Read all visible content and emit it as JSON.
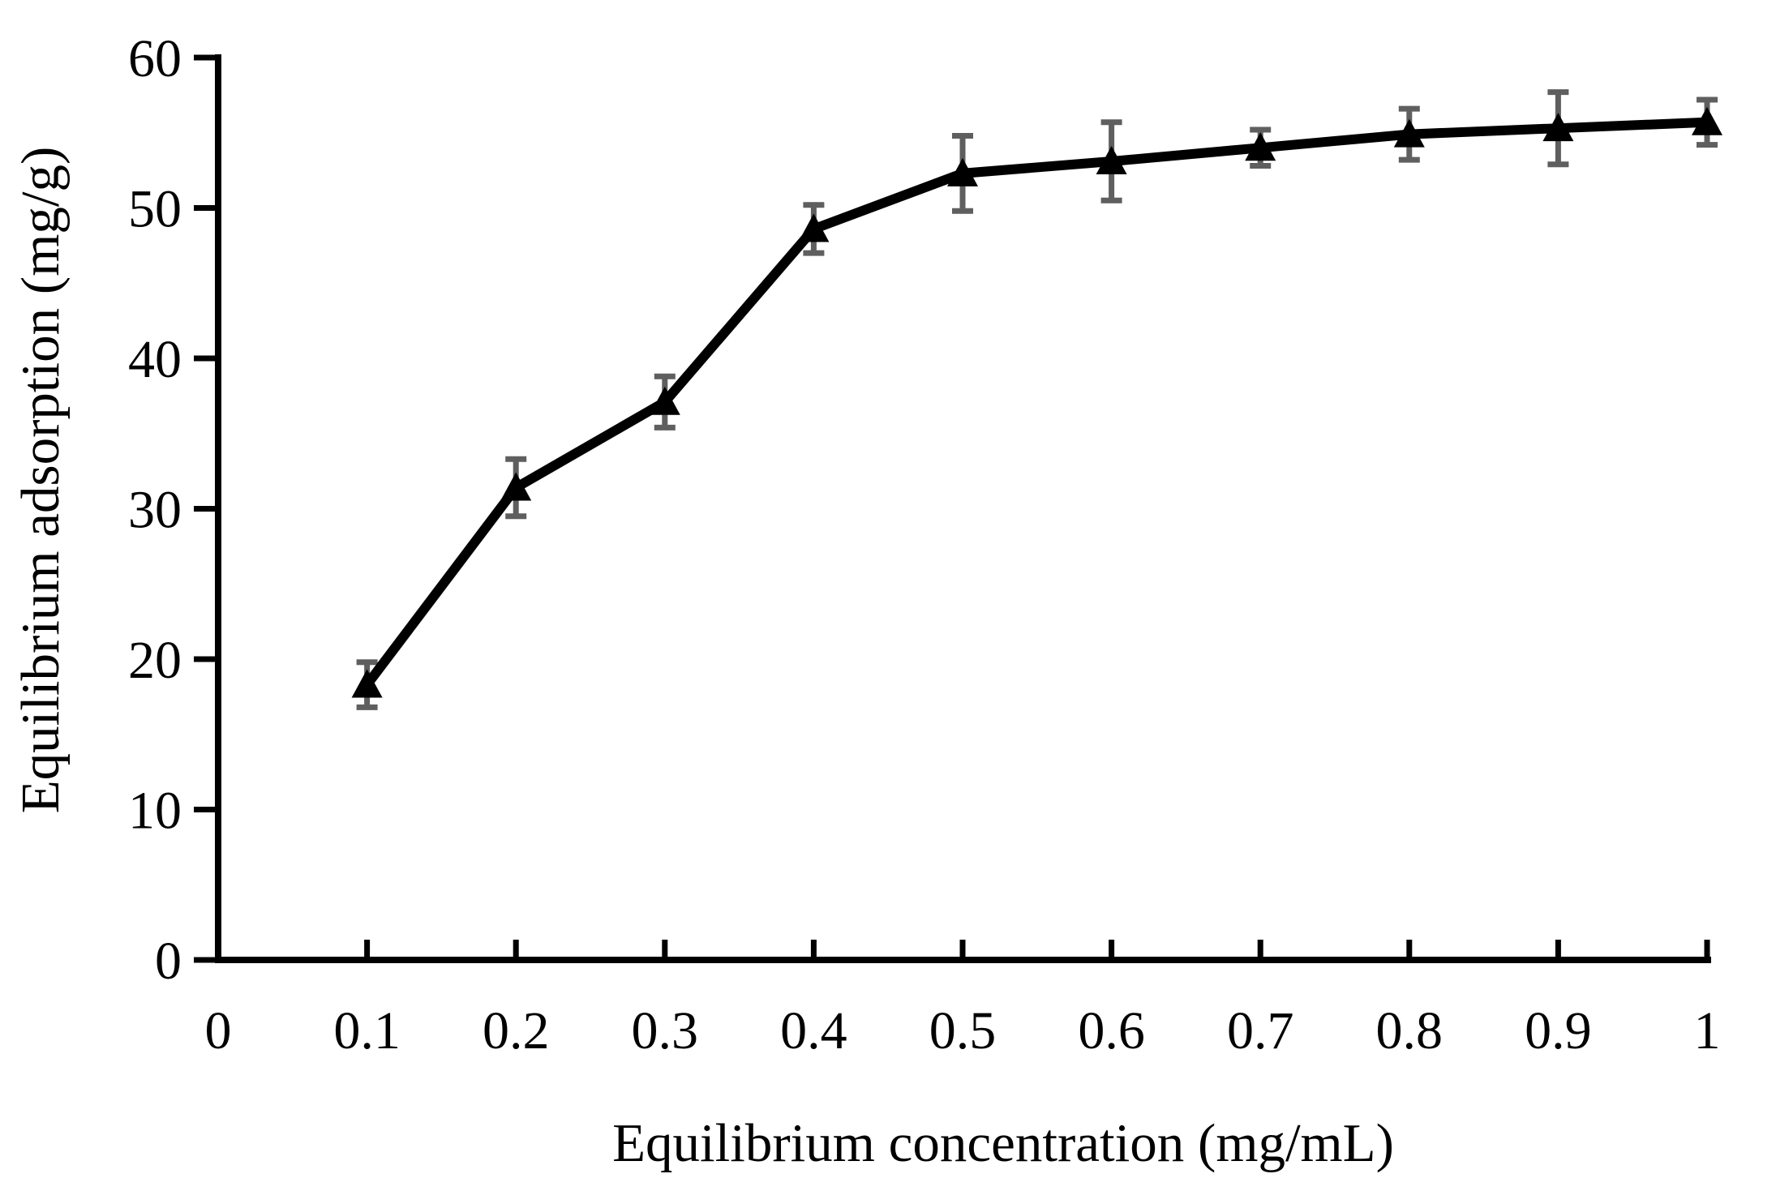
{
  "figure": {
    "background_color": "#ffffff"
  },
  "chart_data": {
    "type": "line",
    "title": "",
    "xlabel": "Equilibrium concentration (mg/mL)",
    "ylabel": "Equilibrium adsorption (mg/g)",
    "x": [
      0.1,
      0.2,
      0.3,
      0.4,
      0.5,
      0.6,
      0.7,
      0.8,
      0.9,
      1.0
    ],
    "series": [
      {
        "name": "equilibrium-adsorption",
        "values": [
          18.3,
          31.4,
          37.1,
          48.6,
          52.3,
          53.1,
          54.0,
          54.9,
          55.3,
          55.7
        ],
        "y_error": [
          1.5,
          1.9,
          1.7,
          1.6,
          2.5,
          2.6,
          1.2,
          1.7,
          2.4,
          1.5
        ],
        "marker": "filled-triangle-up",
        "line_color": "#000000",
        "marker_color": "#000000",
        "error_bar_color": "#5f5f5f"
      }
    ],
    "xlim": [
      0,
      1
    ],
    "ylim": [
      0,
      60
    ],
    "x_ticks": {
      "values": [
        0,
        0.1,
        0.2,
        0.3,
        0.4,
        0.5,
        0.6,
        0.7,
        0.8,
        0.9,
        1
      ],
      "labels": [
        "0",
        "0.1",
        "0.2",
        "0.3",
        "0.4",
        "0.5",
        "0.6",
        "0.7",
        "0.8",
        "0.9",
        "1"
      ]
    },
    "y_ticks": {
      "values": [
        0,
        10,
        20,
        30,
        40,
        50,
        60
      ],
      "labels": [
        "0",
        "10",
        "20",
        "30",
        "40",
        "50",
        "60"
      ]
    },
    "grid": false,
    "legend": "none",
    "axis_color": "#000000"
  }
}
